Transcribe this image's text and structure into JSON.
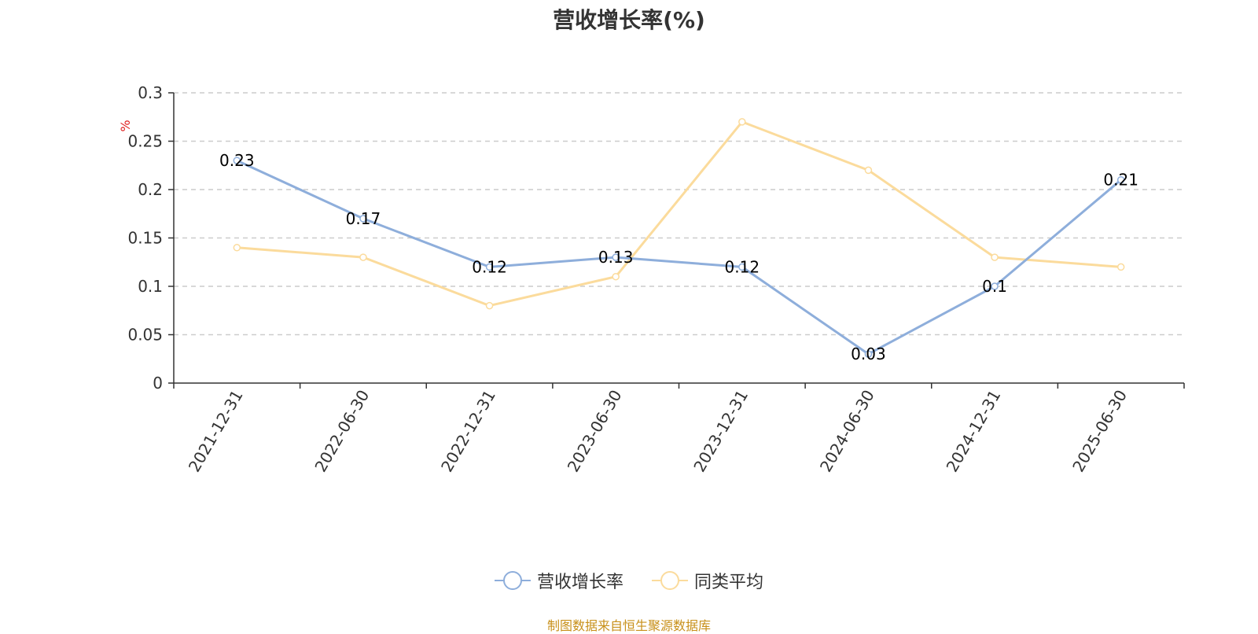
{
  "chart_data": {
    "type": "line",
    "title": "营收增长率(%)",
    "ylabel": "%",
    "xlabel": "",
    "categories": [
      "2021-12-31",
      "2022-06-30",
      "2022-12-31",
      "2023-06-30",
      "2023-12-31",
      "2024-06-30",
      "2024-12-31",
      "2025-06-30"
    ],
    "ylim": [
      0,
      0.3
    ],
    "yticks": [
      "0",
      "0.05",
      "0.1",
      "0.15",
      "0.2",
      "0.25",
      "0.3"
    ],
    "grid": true,
    "legend_position": "bottom",
    "series": [
      {
        "name": "营收增长率",
        "color": "#8eaedb",
        "values": [
          0.23,
          0.17,
          0.12,
          0.13,
          0.12,
          0.03,
          0.1,
          0.21
        ],
        "labels": [
          "0.23",
          "0.17",
          "0.12",
          "0.13",
          "0.12",
          "0.03",
          "0.1",
          "0.21"
        ]
      },
      {
        "name": "同类平均",
        "color": "#fbdb9c",
        "values": [
          0.14,
          0.13,
          0.08,
          0.11,
          0.27,
          0.22,
          0.13,
          0.12
        ]
      }
    ]
  },
  "legend": {
    "item1": "营收增长率",
    "item2": "同类平均"
  },
  "source": "制图数据来自恒生聚源数据库"
}
